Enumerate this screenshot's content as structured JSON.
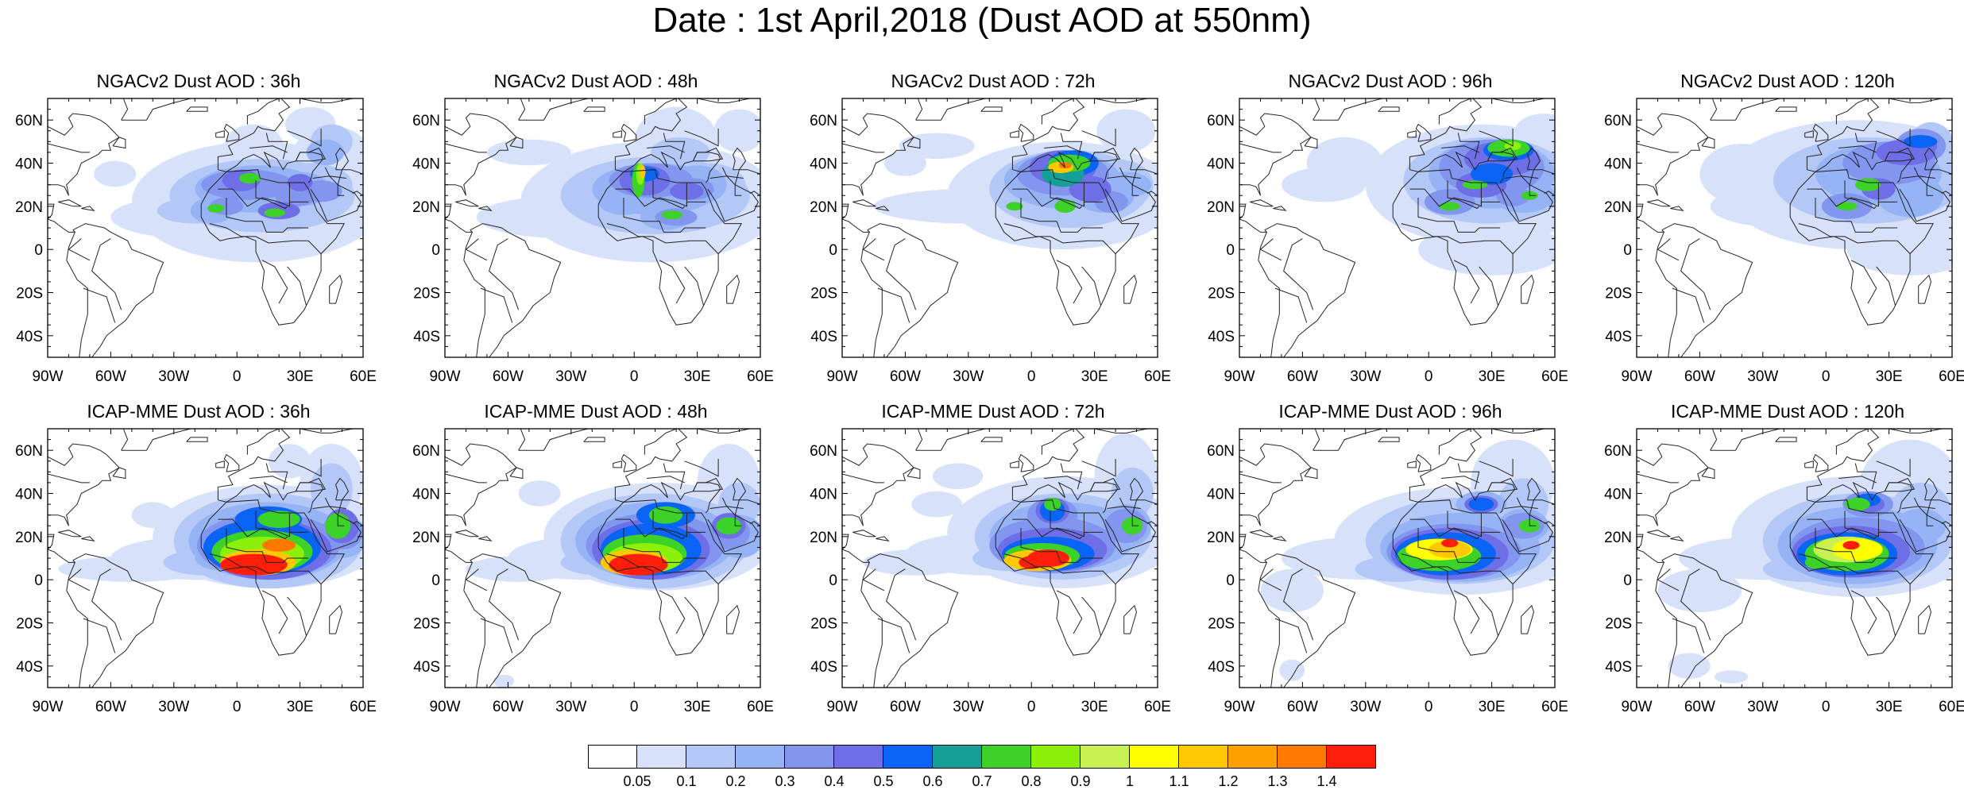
{
  "title": "Date : 1st April,2018 (Dust AOD at 550nm)",
  "axes": {
    "lat_ticks": [
      "60N",
      "40N",
      "20N",
      "0",
      "20S",
      "40S"
    ],
    "lon_ticks": [
      "90W",
      "60W",
      "30W",
      "0",
      "30E",
      "60E"
    ]
  },
  "panels": [
    {
      "title": "NGACv2 Dust AOD : 36h",
      "model": "NGACv2",
      "lead": "36h"
    },
    {
      "title": "NGACv2 Dust AOD : 48h",
      "model": "NGACv2",
      "lead": "48h"
    },
    {
      "title": "NGACv2 Dust AOD : 72h",
      "model": "NGACv2",
      "lead": "72h"
    },
    {
      "title": "NGACv2 Dust AOD : 96h",
      "model": "NGACv2",
      "lead": "96h"
    },
    {
      "title": "NGACv2 Dust AOD : 120h",
      "model": "NGACv2",
      "lead": "120h"
    },
    {
      "title": "ICAP-MME Dust AOD : 36h",
      "model": "ICAP-MME",
      "lead": "36h"
    },
    {
      "title": "ICAP-MME Dust AOD : 48h",
      "model": "ICAP-MME",
      "lead": "48h"
    },
    {
      "title": "ICAP-MME Dust AOD : 72h",
      "model": "ICAP-MME",
      "lead": "72h"
    },
    {
      "title": "ICAP-MME Dust AOD : 96h",
      "model": "ICAP-MME",
      "lead": "96h"
    },
    {
      "title": "ICAP-MME Dust AOD : 120h",
      "model": "ICAP-MME",
      "lead": "120h"
    }
  ],
  "colorbar": {
    "labels": [
      "0.05",
      "0.1",
      "0.2",
      "0.3",
      "0.4",
      "0.5",
      "0.6",
      "0.7",
      "0.8",
      "0.9",
      "1",
      "1.1",
      "1.2",
      "1.3",
      "1.4"
    ],
    "colors": [
      "#ffffff",
      "#d7e1fa",
      "#b4c8f7",
      "#96b4f5",
      "#8296f0",
      "#6e6ee6",
      "#0a64f5",
      "#14a096",
      "#3cd228",
      "#8cf00a",
      "#c8f050",
      "#ffff00",
      "#ffc800",
      "#ffa000",
      "#ff7800",
      "#ff1e0a"
    ]
  }
}
